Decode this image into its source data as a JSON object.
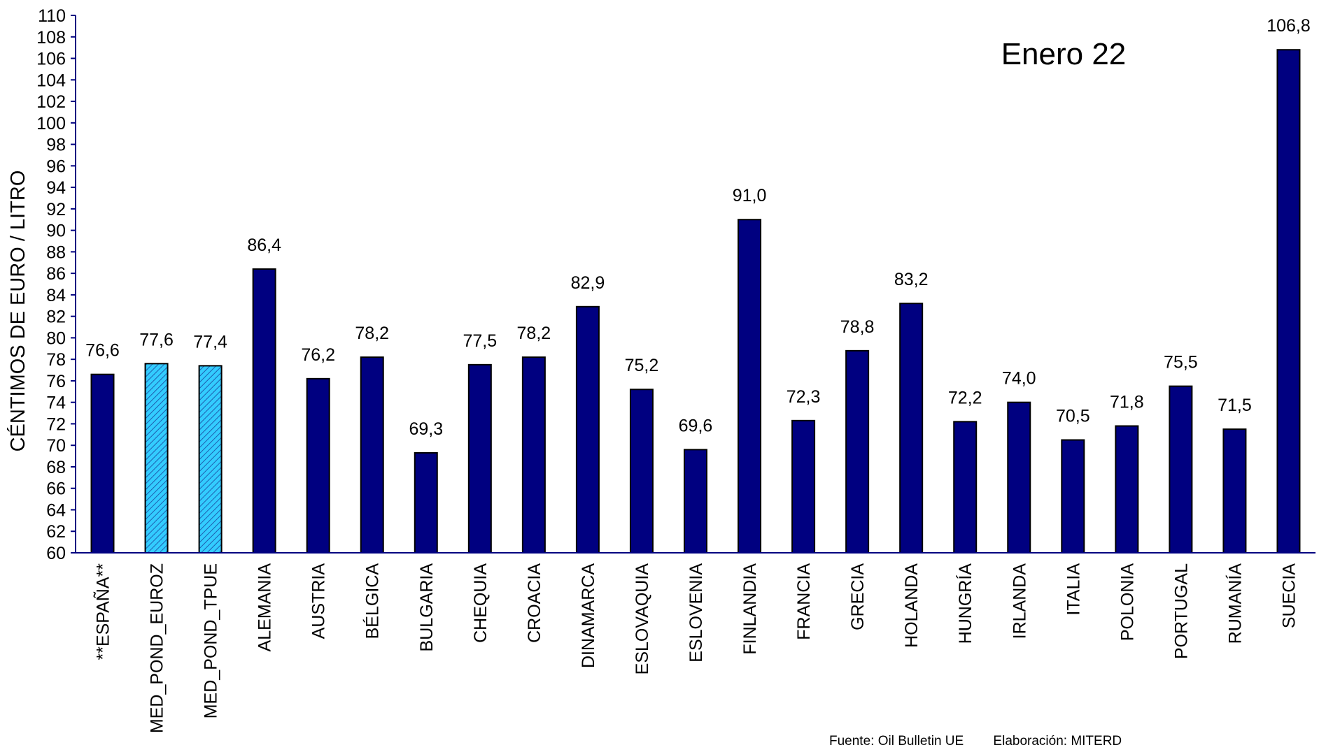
{
  "chart_data": {
    "type": "bar",
    "title": "Enero 22",
    "xlabel": "",
    "ylabel": "CÉNTIMOS DE EURO / LITRO",
    "ylim": [
      60,
      110
    ],
    "ytick_step": 2,
    "grid": false,
    "legend": "none",
    "categories": [
      "**ESPAÑA**",
      "MED_POND_EUROZ",
      "MED_POND_TPUE",
      "ALEMANIA",
      "AUSTRIA",
      "BÉLGICA",
      "BULGARIA",
      "CHEQUIA",
      "CROACIA",
      "DINAMARCA",
      "ESLOVAQUIA",
      "ESLOVENIA",
      "FINLANDIA",
      "FRANCIA",
      "GRECIA",
      "HOLANDA",
      "HUNGRÍA",
      "IRLANDA",
      "ITALIA",
      "POLONIA",
      "PORTUGAL",
      "RUMANÍA",
      "SUECIA"
    ],
    "values": [
      76.6,
      77.6,
      77.4,
      86.4,
      76.2,
      78.2,
      69.3,
      77.5,
      78.2,
      82.9,
      75.2,
      69.6,
      91.0,
      72.3,
      78.8,
      83.2,
      72.2,
      74.0,
      70.5,
      71.8,
      75.5,
      71.5,
      106.8
    ],
    "value_labels": [
      "76,6",
      "77,6",
      "77,4",
      "86,4",
      "76,2",
      "78,2",
      "69,3",
      "77,5",
      "78,2",
      "82,9",
      "75,2",
      "69,6",
      "91,0",
      "72,3",
      "78,8",
      "83,2",
      "72,2",
      "74,0",
      "70,5",
      "71,8",
      "75,5",
      "71,5",
      "106,8"
    ],
    "highlighted": [
      "MED_POND_EUROZ",
      "MED_POND_TPUE"
    ],
    "colors": {
      "bar": "#000080",
      "highlight": "#33ccff",
      "axis": "#000080"
    },
    "source_note": "Fuente: Oil Bulletin UE        Elaboración: MITERD"
  }
}
